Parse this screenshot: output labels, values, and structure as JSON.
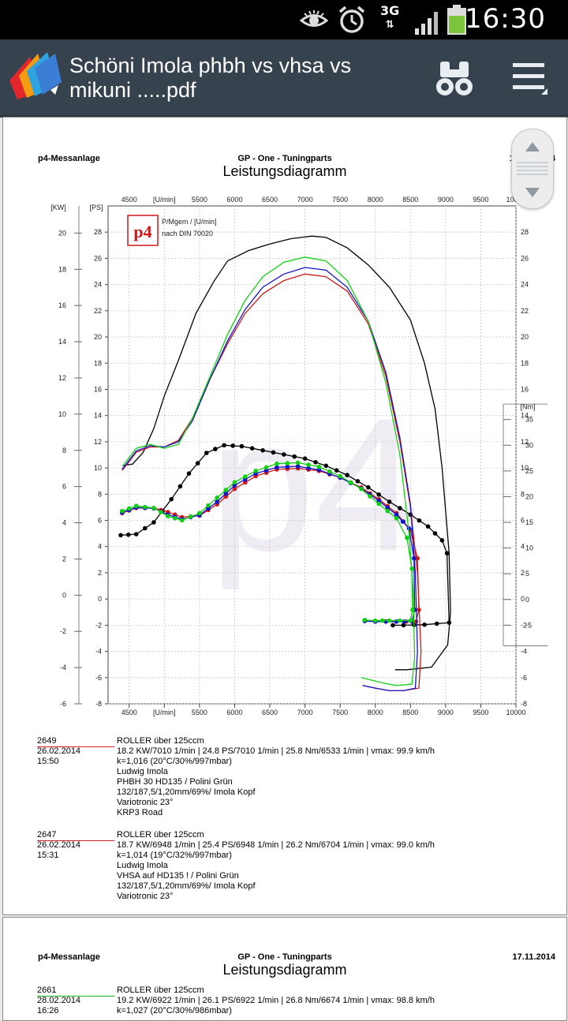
{
  "status_bar": {
    "time": "16:30",
    "network": "3G",
    "icons": [
      "eye-icon",
      "alarm-icon",
      "signal-icon",
      "battery-icon"
    ]
  },
  "app_bar": {
    "title": "Schöni Imola phbh vs vhsa vs mikuni .....pdf",
    "icons": [
      "app-logo-icon",
      "binoculars-icon",
      "menu-icon"
    ]
  },
  "page1": {
    "header_left": "p4-Messanlage",
    "header_center": "GP - One - Tuningparts",
    "header_sub": "Leistungsdiagramm",
    "header_right": "1",
    "header_right_tail": "4",
    "legend_line1": "P/Mgem / [U/min]",
    "legend_line2": "nach DIN 70020",
    "logo_text": "p4",
    "watermark": "p4",
    "records": [
      {
        "id": "2649",
        "datetime": "26.02.2014  15:50",
        "lines": [
          "ROLLER über 125ccm",
          "18.2 KW/7010 1/min  |  24.8 PS/7010 1/min  |  25.8 Nm/6533 1/min | vmax: 99.9 km/h",
          "k=1,016 (20°C/30%/997mbar)",
          "Ludwig Imola",
          "PHBH 30 HD135  / Polini Grün",
          "132/187,5/1,20mm/69%/ Imola Kopf",
          "Variotronic 23°",
          "KRP3 Road"
        ]
      },
      {
        "id": "2647",
        "datetime": "26.02.2014  15:31",
        "lines": [
          "ROLLER über 125ccm",
          "18.7 KW/6948 1/min  |  25.4 PS/6948 1/min  |  26.2 Nm/6704 1/min | vmax: 99.0 km/h",
          "k=1,014 (19°C/32%/997mbar)",
          "Ludwig Imola",
          "VHSA auf HD135 ! / Polini Grün",
          "132/187,5/1,20mm/69%/ Imola Kopf",
          "Variotronic 23°"
        ]
      }
    ]
  },
  "page2": {
    "header_left": "p4-Messanlage",
    "header_center": "GP - One - Tuningparts",
    "header_sub": "Leistungsdiagramm",
    "header_right": "17.11.2014",
    "record": {
      "id": "2661",
      "datetime": "28.02.2014  16:26",
      "lines": [
        "ROLLER über 125ccm",
        "19.2 KW/6922 1/min  |  26.1 PS/6922 1/min  |  26.8 Nm/6674 1/min | vmax: 98.8 km/h",
        "k=1,027 (20°C/30%/986mbar)"
      ]
    }
  },
  "chart_data": {
    "type": "line",
    "x_label": "[U/min]",
    "x_ticks": [
      4500,
      5000,
      5500,
      6000,
      6500,
      7000,
      7500,
      8000,
      8500,
      9000,
      9500,
      10000
    ],
    "x_range": [
      4200,
      10000
    ],
    "kw_label": "[KW]",
    "kw_ticks": [
      20,
      18,
      16,
      14,
      12,
      10,
      8,
      6,
      4,
      2,
      0,
      -2,
      -4,
      -6
    ],
    "kw_range": [
      -6,
      21.5
    ],
    "ps_label": "[PS]",
    "ps_ticks": [
      28,
      26,
      24,
      22,
      20,
      18,
      16,
      14,
      12,
      10,
      8,
      6,
      4,
      2,
      0,
      -2,
      -4,
      -6,
      -8
    ],
    "ps_range": [
      -8,
      30
    ],
    "nm_label": "[Nm]",
    "nm_ticks": [
      35,
      30,
      25,
      20,
      15,
      10,
      5,
      0,
      -5
    ],
    "grid": true,
    "series": [
      {
        "color": "#000000",
        "power_ps": [
          [
            4420,
            10.2
          ],
          [
            4550,
            10.3
          ],
          [
            4700,
            11.2
          ],
          [
            4850,
            13.0
          ],
          [
            5000,
            15.5
          ],
          [
            5200,
            18.2
          ],
          [
            5450,
            21.8
          ],
          [
            5700,
            24.2
          ],
          [
            5900,
            25.8
          ],
          [
            6200,
            26.6
          ],
          [
            6500,
            27.1
          ],
          [
            6800,
            27.5
          ],
          [
            7100,
            27.7
          ],
          [
            7300,
            27.6
          ],
          [
            7600,
            26.8
          ],
          [
            7900,
            25.5
          ],
          [
            8200,
            23.8
          ],
          [
            8500,
            21.3
          ],
          [
            8700,
            18.0
          ],
          [
            8850,
            14.5
          ],
          [
            8950,
            10.0
          ],
          [
            9050,
            3.5
          ],
          [
            9070,
            -1.0
          ],
          [
            9030,
            -3.5
          ],
          [
            8800,
            -5.2
          ],
          [
            8450,
            -5.4
          ],
          [
            8280,
            -5.4
          ]
        ],
        "torque_nm": [
          [
            4380,
            12.5
          ],
          [
            4600,
            12.7
          ],
          [
            4850,
            15.0
          ],
          [
            5100,
            19.5
          ],
          [
            5350,
            24.5
          ],
          [
            5600,
            28.5
          ],
          [
            5850,
            30.0
          ],
          [
            6100,
            29.8
          ],
          [
            6400,
            29.0
          ],
          [
            6700,
            28.2
          ],
          [
            7000,
            27.4
          ],
          [
            7300,
            26.0
          ],
          [
            7600,
            24.2
          ],
          [
            7900,
            21.8
          ],
          [
            8200,
            19.0
          ],
          [
            8500,
            16.5
          ],
          [
            8750,
            14.2
          ],
          [
            8950,
            11.5
          ],
          [
            9020,
            9.0
          ],
          [
            9050,
            -4.5
          ],
          [
            8700,
            -4.9
          ],
          [
            8400,
            -5.0
          ],
          [
            8250,
            -5.0
          ]
        ]
      },
      {
        "color": "#d01818",
        "power_ps": [
          [
            4400,
            9.8
          ],
          [
            4600,
            11.2
          ],
          [
            4800,
            11.6
          ],
          [
            5000,
            11.6
          ],
          [
            5200,
            12.1
          ],
          [
            5400,
            13.8
          ],
          [
            5650,
            16.8
          ],
          [
            5900,
            19.5
          ],
          [
            6150,
            21.8
          ],
          [
            6400,
            23.3
          ],
          [
            6700,
            24.3
          ],
          [
            7000,
            24.8
          ],
          [
            7300,
            24.6
          ],
          [
            7600,
            23.5
          ],
          [
            7900,
            21.0
          ],
          [
            8150,
            17.0
          ],
          [
            8350,
            12.0
          ],
          [
            8500,
            7.0
          ],
          [
            8600,
            2.0
          ],
          [
            8650,
            -4.0
          ],
          [
            8620,
            -6.8
          ],
          [
            8400,
            -7.0
          ],
          [
            8200,
            -7.0
          ],
          [
            8000,
            -6.8
          ],
          [
            7820,
            -6.6
          ]
        ],
        "torque_nm": [
          [
            4400,
            16.8
          ],
          [
            4600,
            17.8
          ],
          [
            4850,
            17.8
          ],
          [
            5050,
            17.0
          ],
          [
            5250,
            16.0
          ],
          [
            5500,
            16.3
          ],
          [
            5750,
            18.5
          ],
          [
            6000,
            21.5
          ],
          [
            6300,
            24.0
          ],
          [
            6600,
            25.3
          ],
          [
            6900,
            25.5
          ],
          [
            7200,
            25.0
          ],
          [
            7500,
            23.7
          ],
          [
            7800,
            21.8
          ],
          [
            8050,
            19.5
          ],
          [
            8300,
            16.8
          ],
          [
            8500,
            13.5
          ],
          [
            8600,
            8.0
          ],
          [
            8620,
            -2.0
          ],
          [
            8580,
            -4.3
          ],
          [
            8300,
            -4.3
          ],
          [
            8000,
            -4.2
          ],
          [
            7850,
            -4.0
          ]
        ]
      },
      {
        "color": "#1414c8",
        "power_ps": [
          [
            4400,
            9.9
          ],
          [
            4600,
            11.3
          ],
          [
            4800,
            11.7
          ],
          [
            5000,
            11.6
          ],
          [
            5200,
            12.0
          ],
          [
            5400,
            13.6
          ],
          [
            5650,
            16.8
          ],
          [
            5900,
            19.7
          ],
          [
            6150,
            22.1
          ],
          [
            6400,
            23.8
          ],
          [
            6700,
            24.8
          ],
          [
            7000,
            25.3
          ],
          [
            7300,
            25.1
          ],
          [
            7600,
            23.8
          ],
          [
            7900,
            21.2
          ],
          [
            8150,
            17.3
          ],
          [
            8350,
            12.3
          ],
          [
            8500,
            7.2
          ],
          [
            8570,
            2.0
          ],
          [
            8600,
            -4.0
          ],
          [
            8570,
            -6.8
          ],
          [
            8400,
            -7.0
          ],
          [
            8200,
            -7.0
          ],
          [
            8000,
            -6.8
          ],
          [
            7820,
            -6.6
          ]
        ],
        "torque_nm": [
          [
            4400,
            16.9
          ],
          [
            4600,
            17.9
          ],
          [
            4850,
            17.7
          ],
          [
            5050,
            16.5
          ],
          [
            5250,
            15.6
          ],
          [
            5500,
            16.4
          ],
          [
            5750,
            19.0
          ],
          [
            6000,
            22.2
          ],
          [
            6300,
            24.5
          ],
          [
            6600,
            25.7
          ],
          [
            6900,
            25.9
          ],
          [
            7200,
            25.2
          ],
          [
            7500,
            23.7
          ],
          [
            7800,
            21.6
          ],
          [
            8050,
            19.2
          ],
          [
            8300,
            16.5
          ],
          [
            8480,
            13.8
          ],
          [
            8550,
            8.0
          ],
          [
            8560,
            -2.0
          ],
          [
            8520,
            -4.3
          ],
          [
            8300,
            -4.3
          ],
          [
            8000,
            -4.3
          ],
          [
            7850,
            -4.2
          ]
        ]
      },
      {
        "color": "#14d014",
        "power_ps": [
          [
            4400,
            10.1
          ],
          [
            4600,
            11.5
          ],
          [
            4800,
            11.8
          ],
          [
            5000,
            11.5
          ],
          [
            5200,
            11.8
          ],
          [
            5400,
            13.8
          ],
          [
            5650,
            17.0
          ],
          [
            5900,
            20.2
          ],
          [
            6150,
            22.8
          ],
          [
            6400,
            24.6
          ],
          [
            6700,
            25.7
          ],
          [
            7000,
            26.1
          ],
          [
            7300,
            25.8
          ],
          [
            7600,
            24.3
          ],
          [
            7900,
            21.2
          ],
          [
            8150,
            16.5
          ],
          [
            8350,
            11.0
          ],
          [
            8480,
            5.0
          ],
          [
            8540,
            0.5
          ],
          [
            8560,
            -4.5
          ],
          [
            8520,
            -6.5
          ],
          [
            8300,
            -6.6
          ],
          [
            8100,
            -6.4
          ],
          [
            7800,
            -6.0
          ]
        ],
        "torque_nm": [
          [
            4400,
            17.2
          ],
          [
            4600,
            18.2
          ],
          [
            4850,
            17.8
          ],
          [
            5050,
            16.2
          ],
          [
            5250,
            15.4
          ],
          [
            5500,
            16.8
          ],
          [
            5750,
            19.8
          ],
          [
            6000,
            22.8
          ],
          [
            6300,
            25.0
          ],
          [
            6600,
            26.4
          ],
          [
            6900,
            26.6
          ],
          [
            7200,
            25.8
          ],
          [
            7500,
            24.0
          ],
          [
            7800,
            21.5
          ],
          [
            8050,
            18.6
          ],
          [
            8300,
            15.8
          ],
          [
            8450,
            12.0
          ],
          [
            8520,
            6.0
          ],
          [
            8530,
            -2.0
          ],
          [
            8500,
            -4.1
          ],
          [
            8200,
            -4.1
          ],
          [
            8000,
            -4.1
          ],
          [
            7850,
            -4.0
          ]
        ]
      }
    ]
  }
}
